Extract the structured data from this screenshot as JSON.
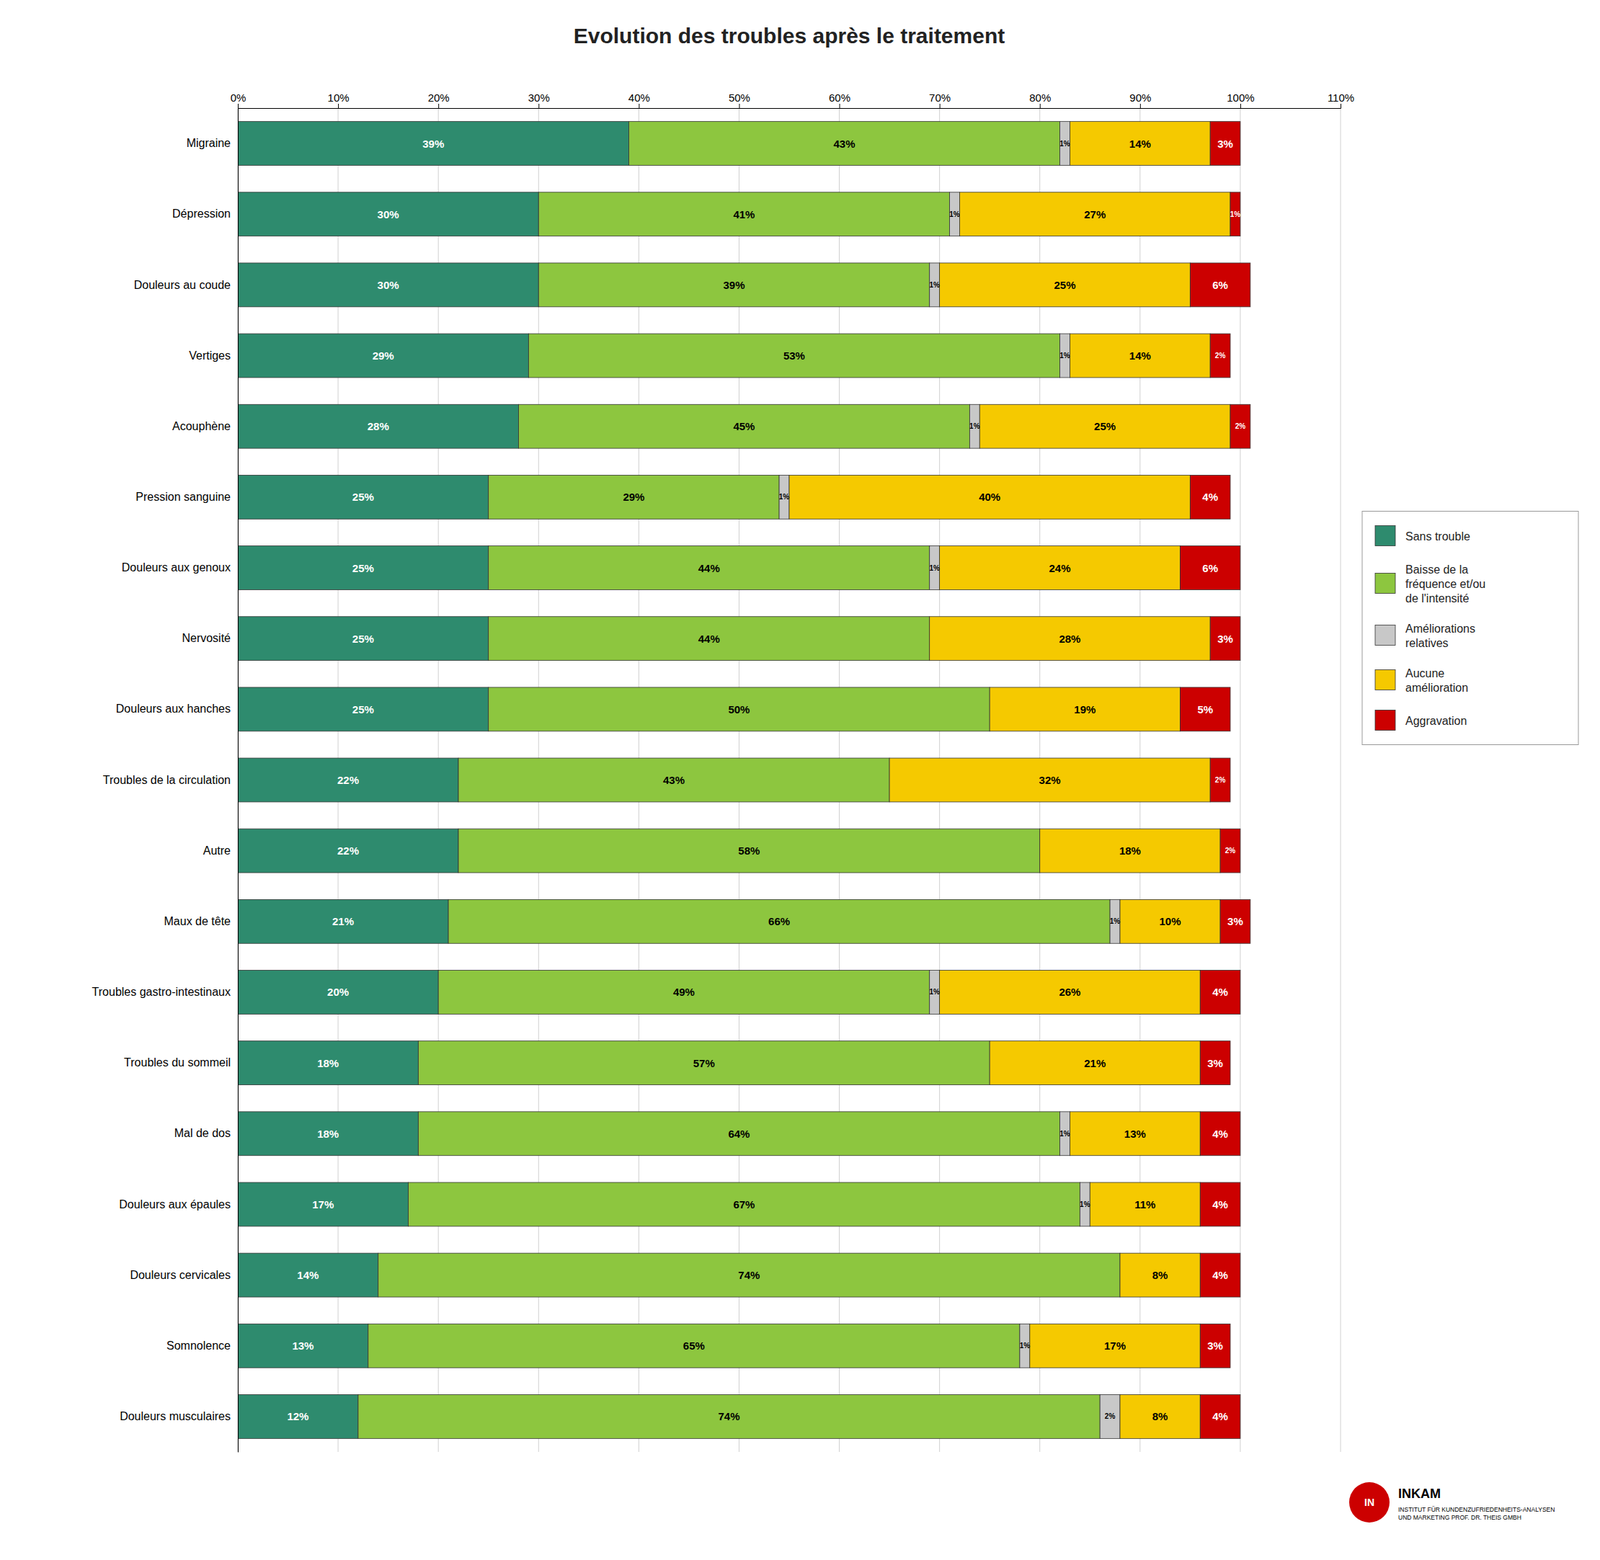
{
  "chart_data": {
    "type": "bar",
    "orientation": "horizontal",
    "stacked": true,
    "title": "Evolution des troubles après le traitement",
    "categories": [
      "Migraine",
      "Dépression",
      "Douleurs au coude",
      "Vertiges",
      "Acouphène",
      "Pression sanguine",
      "Douleurs aux genoux",
      "Nervosité",
      "Douleurs aux hanches",
      "Troubles de la circulation",
      "Autre",
      "Maux de tête",
      "Troubles gastro-intestinaux",
      "Troubles du sommeil",
      "Mal de dos",
      "Douleurs aux épaules",
      "Douleurs cervicales",
      "Somnolence",
      "Douleurs musculaires"
    ],
    "series": [
      {
        "name": "Sans trouble",
        "color": "#2E8B6E",
        "values": [
          39,
          30,
          30,
          29,
          28,
          25,
          25,
          25,
          25,
          22,
          22,
          21,
          20,
          18,
          18,
          17,
          14,
          13,
          12
        ],
        "value_labels": [
          "39%",
          "30%",
          "30%",
          "29%",
          "28%",
          "25%",
          "25%",
          "25%",
          "25%",
          "22%",
          "22%",
          "21%",
          "20%",
          "18%",
          "18%",
          "17%",
          "14%",
          "13%",
          "12%"
        ]
      },
      {
        "name": "Baisse de la\nfréquence et/ou\nde l'intensité",
        "color": "#8DC63F",
        "values": [
          43,
          41,
          39,
          53,
          45,
          29,
          44,
          44,
          50,
          43,
          58,
          66,
          49,
          57,
          64,
          67,
          74,
          65,
          74
        ],
        "value_labels": [
          "43%",
          "41%",
          "39%",
          "53%",
          "45%",
          "29%",
          "44%",
          "44%",
          "50%",
          "43%",
          "58%",
          "66%",
          "49%",
          "57%",
          "64%",
          "67%",
          "74%",
          "65%",
          "74%"
        ]
      },
      {
        "name": "Améliorations\nrelatives",
        "color": "#C8C8C8",
        "values": [
          1,
          1,
          1,
          1,
          1,
          1,
          1,
          0,
          0,
          0,
          0,
          1,
          1,
          0,
          1,
          1,
          0,
          1,
          2
        ],
        "value_labels": [
          "1%",
          "1%",
          "1%",
          "1%",
          "1%",
          "1%",
          "1%",
          null,
          null,
          null,
          null,
          "1%",
          "1%",
          null,
          "1%",
          "1%",
          null,
          "1%",
          "2%"
        ]
      },
      {
        "name": "Aucune\namélioration",
        "color": "#F5C900",
        "values": [
          14,
          27,
          25,
          14,
          25,
          40,
          24,
          28,
          19,
          32,
          18,
          10,
          26,
          21,
          13,
          11,
          8,
          17,
          8
        ],
        "value_labels": [
          "14%",
          "27%",
          "25%",
          "14%",
          "25%",
          "40%",
          "24%",
          "28%",
          "19%",
          "32%",
          "18%",
          "10%",
          "26%",
          "21%",
          "13%",
          "11%",
          "8%",
          "17%",
          "8%"
        ]
      },
      {
        "name": "Aggravation",
        "color": "#CC0000",
        "values": [
          3,
          1,
          6,
          2,
          2,
          4,
          6,
          3,
          5,
          2,
          2,
          3,
          4,
          3,
          4,
          4,
          4,
          3,
          4
        ],
        "value_labels": [
          "3%",
          "1%",
          "6%",
          "2%",
          "2%",
          "4%",
          "6%",
          "3%",
          "5%",
          "2%",
          "2%",
          "3%",
          "4%",
          "3%",
          "4%",
          "4%",
          "4%",
          "3%",
          "4%"
        ]
      }
    ],
    "xlim": [
      0,
      110
    ],
    "xticks": [
      {
        "value": 0,
        "label": "0%"
      },
      {
        "value": 10,
        "label": "10%"
      },
      {
        "value": 20,
        "label": "20%"
      },
      {
        "value": 30,
        "label": "30%"
      },
      {
        "value": 40,
        "label": "40%"
      },
      {
        "value": 50,
        "label": "50%"
      },
      {
        "value": 60,
        "label": "60%"
      },
      {
        "value": 70,
        "label": "70%"
      },
      {
        "value": 80,
        "label": "80%"
      },
      {
        "value": 90,
        "label": "90%"
      },
      {
        "value": 100,
        "label": "100%"
      },
      {
        "value": 110,
        "label": "110%"
      }
    ],
    "grid": true,
    "legend": "right",
    "data_labels": true,
    "annotations": [
      "IN",
      "INKAM",
      "INSTITUT FÜR KUNDENZUFRIEDENHEITS-ANALYSEN\nUND MARKETING PROF. DR. THEIS GMBH"
    ]
  }
}
